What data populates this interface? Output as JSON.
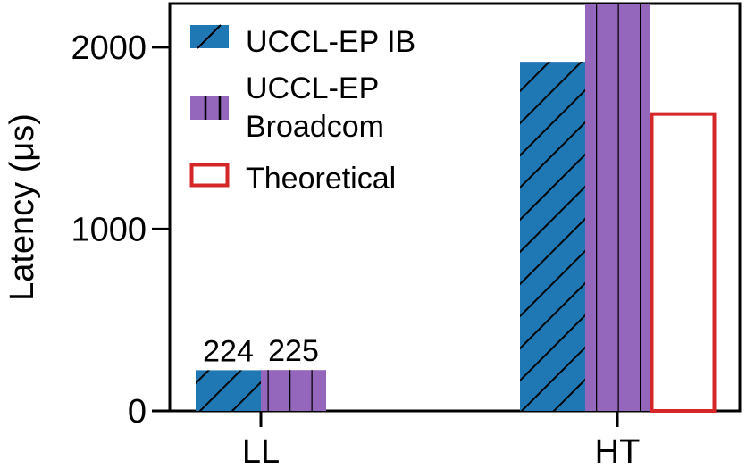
{
  "chart_data": {
    "type": "bar",
    "categories": [
      "LL",
      "HT"
    ],
    "series": [
      {
        "name": "UCCL-EP IB",
        "name_lines": [
          "UCCL-EP IB"
        ],
        "values": [
          224,
          1920
        ],
        "color": "#1f77b4",
        "hatch": "diagonal",
        "fill": true
      },
      {
        "name": "UCCL-EP Broadcom",
        "name_lines": [
          "UCCL-EP",
          "Broadcom"
        ],
        "values": [
          225,
          2240
        ],
        "color": "#9467bd",
        "hatch": "vertical",
        "fill": true
      },
      {
        "name": "Theoretical",
        "name_lines": [
          "Theoretical"
        ],
        "values": [
          null,
          1640
        ],
        "color": "#d62728",
        "hatch": "none",
        "fill": false
      }
    ],
    "data_labels": [
      {
        "series": 0,
        "category": 0,
        "text": "224"
      },
      {
        "series": 1,
        "category": 0,
        "text": "225"
      }
    ],
    "title": "",
    "xlabel": "",
    "ylabel": "Latency (μs)",
    "ylim": [
      0,
      2240
    ],
    "yticks": [
      0,
      1000,
      2000
    ],
    "ytick_labels": [
      "0",
      "1000",
      "2000"
    ],
    "legend_position": "top-left",
    "grid": false
  }
}
